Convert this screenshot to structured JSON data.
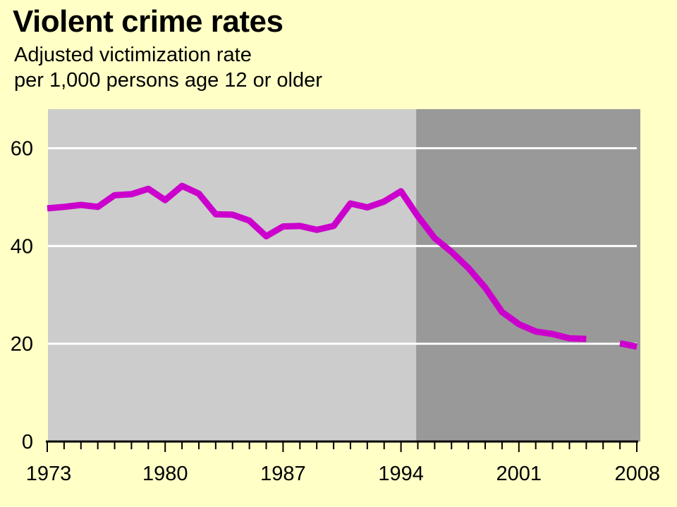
{
  "chart_data": {
    "type": "line",
    "title": "Violent crime rates",
    "subtitle_lines": [
      "Adjusted victimization rate",
      "per 1,000 persons age 12 or older"
    ],
    "xlabel": "",
    "ylabel": "",
    "xlim": [
      1973,
      2008
    ],
    "ylim": [
      0,
      68
    ],
    "y_ticks": [
      0,
      20,
      40,
      60
    ],
    "x_tick_labels": [
      "1973",
      "1980",
      "1987",
      "1994",
      "2001",
      "2008"
    ],
    "grid": true,
    "line_color": "#cc00cc",
    "shade_regions": [
      {
        "from": 1973,
        "to": 1994.9,
        "color": "#cccccc"
      },
      {
        "from": 1994.9,
        "to": 2008,
        "color": "#999999"
      }
    ],
    "series": [
      {
        "segments": [
          {
            "x": [
              1973,
              1974,
              1975,
              1976,
              1977,
              1978,
              1979,
              1980,
              1981,
              1982,
              1983,
              1984,
              1985,
              1986,
              1987,
              1988,
              1989,
              1990,
              1991,
              1992,
              1993,
              1994,
              1995,
              1996,
              1997,
              1998,
              1999,
              2000,
              2001,
              2002,
              2003,
              2004,
              2005
            ],
            "y": [
              47.7,
              48.0,
              48.4,
              48.0,
              50.4,
              50.6,
              51.7,
              49.4,
              52.3,
              50.7,
              46.5,
              46.4,
              45.2,
              42.0,
              44.0,
              44.1,
              43.3,
              44.1,
              48.7,
              47.9,
              49.1,
              51.2,
              46.1,
              41.6,
              38.8,
              35.5,
              31.5,
              26.5,
              24.0,
              22.5,
              22.0,
              21.1,
              21.0
            ]
          },
          {
            "x": [
              2007,
              2008
            ],
            "y": [
              20.1,
              19.4
            ]
          }
        ]
      }
    ]
  }
}
